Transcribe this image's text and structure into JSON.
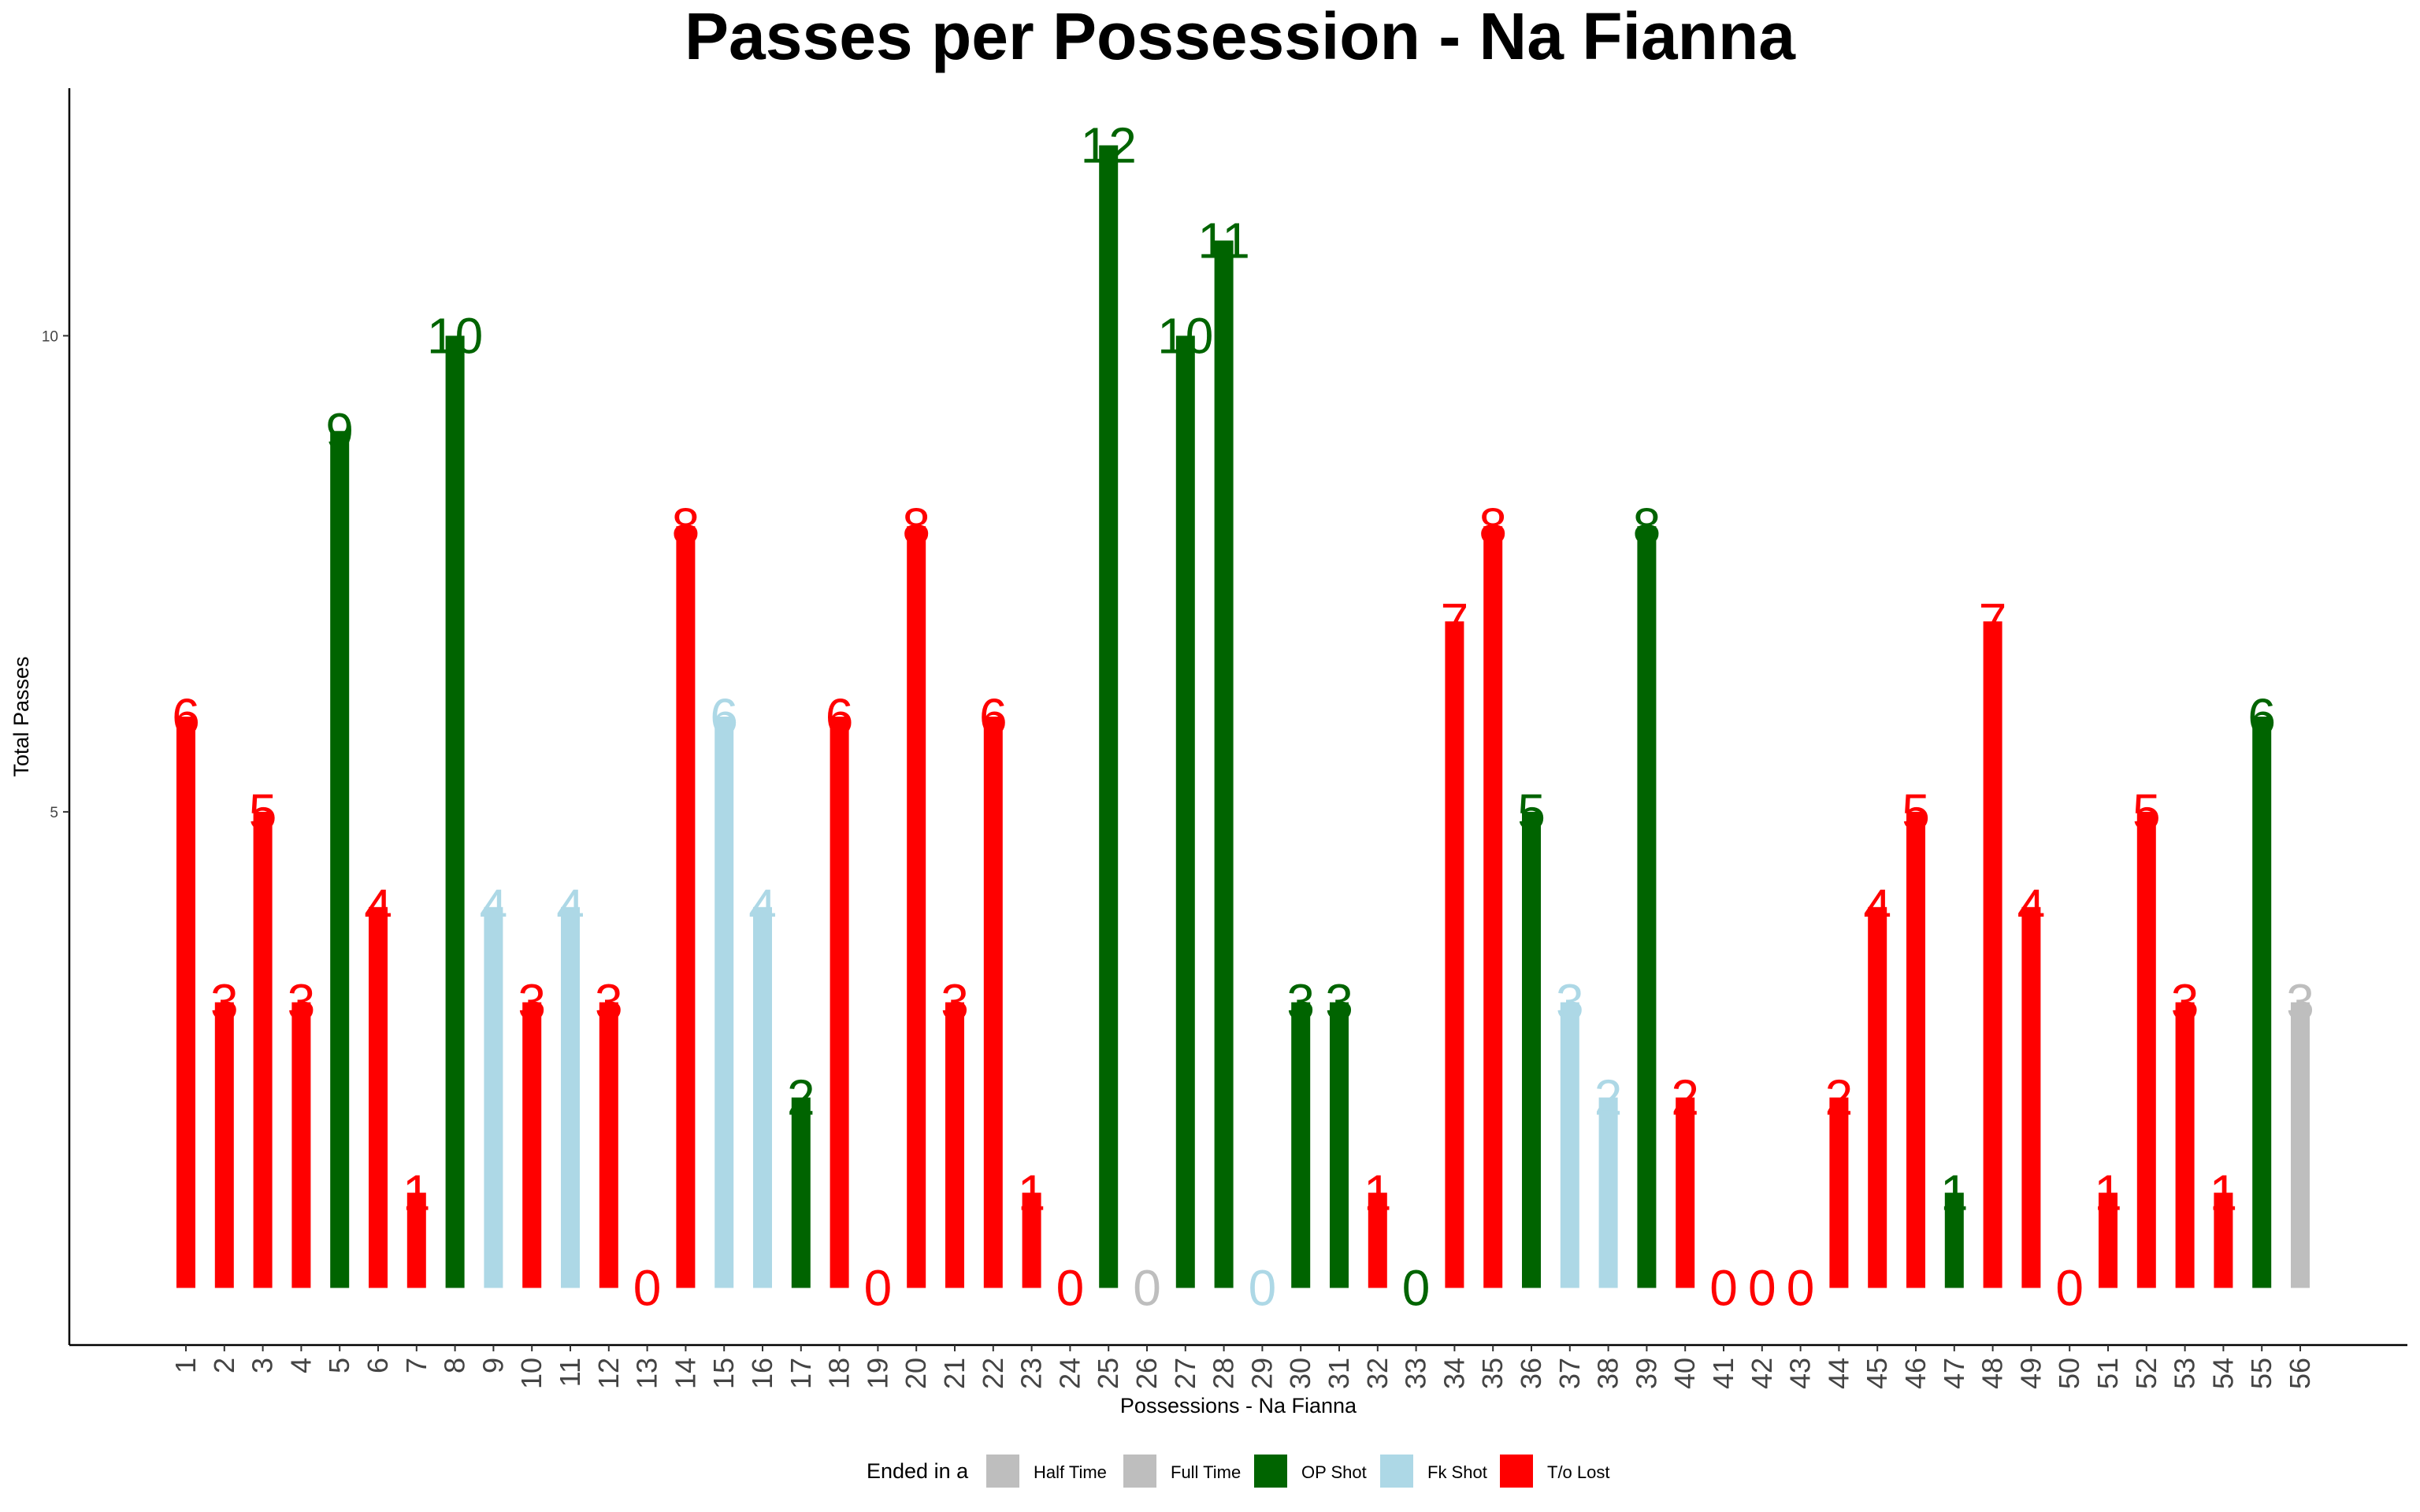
{
  "chart_data": {
    "type": "bar",
    "title": "Passes per Possession - Na Fianna",
    "xlabel": "Possessions - Na Fianna",
    "ylabel": "Total Passes",
    "y_ticks": [
      5,
      10
    ],
    "ylim": [
      -0.6,
      12.6
    ],
    "grid": false,
    "legend_position": "bottom",
    "legend_title": "Ended in a",
    "legend": [
      {
        "name": "Half Time",
        "color": "#bebebe"
      },
      {
        "name": "Full Time",
        "color": "#bebebe"
      },
      {
        "name": "OP Shot",
        "color": "#006400"
      },
      {
        "name": "Fk Shot",
        "color": "#add8e6"
      },
      {
        "name": "T/o Lost",
        "color": "#ff0000"
      }
    ],
    "categories": [
      "1",
      "2",
      "3",
      "4",
      "5",
      "6",
      "7",
      "8",
      "9",
      "10",
      "11",
      "12",
      "13",
      "14",
      "15",
      "16",
      "17",
      "18",
      "19",
      "20",
      "21",
      "22",
      "23",
      "24",
      "25",
      "26",
      "27",
      "28",
      "29",
      "30",
      "31",
      "32",
      "33",
      "34",
      "35",
      "36",
      "37",
      "38",
      "39",
      "40",
      "41",
      "42",
      "43",
      "44",
      "45",
      "46",
      "47",
      "48",
      "49",
      "50",
      "51",
      "52",
      "53",
      "54",
      "55",
      "56"
    ],
    "values": [
      6,
      3,
      5,
      3,
      9,
      4,
      1,
      10,
      4,
      3,
      4,
      3,
      0,
      8,
      6,
      4,
      2,
      6,
      0,
      8,
      3,
      6,
      1,
      0,
      12,
      0,
      10,
      11,
      0,
      3,
      3,
      1,
      0,
      7,
      8,
      5,
      3,
      2,
      8,
      2,
      0,
      0,
      0,
      2,
      4,
      5,
      1,
      7,
      4,
      0,
      1,
      5,
      3,
      1,
      6,
      3
    ],
    "outcomes": [
      "T/o Lost",
      "T/o Lost",
      "T/o Lost",
      "T/o Lost",
      "OP Shot",
      "T/o Lost",
      "T/o Lost",
      "OP Shot",
      "Fk Shot",
      "T/o Lost",
      "Fk Shot",
      "T/o Lost",
      "T/o Lost",
      "T/o Lost",
      "Fk Shot",
      "Fk Shot",
      "OP Shot",
      "T/o Lost",
      "T/o Lost",
      "T/o Lost",
      "T/o Lost",
      "T/o Lost",
      "T/o Lost",
      "T/o Lost",
      "OP Shot",
      "Half Time",
      "OP Shot",
      "OP Shot",
      "Fk Shot",
      "OP Shot",
      "OP Shot",
      "T/o Lost",
      "OP Shot",
      "T/o Lost",
      "T/o Lost",
      "OP Shot",
      "Fk Shot",
      "Fk Shot",
      "OP Shot",
      "T/o Lost",
      "T/o Lost",
      "T/o Lost",
      "T/o Lost",
      "T/o Lost",
      "T/o Lost",
      "T/o Lost",
      "OP Shot",
      "T/o Lost",
      "T/o Lost",
      "T/o Lost",
      "T/o Lost",
      "T/o Lost",
      "T/o Lost",
      "T/o Lost",
      "OP Shot",
      "Full Time"
    ]
  }
}
